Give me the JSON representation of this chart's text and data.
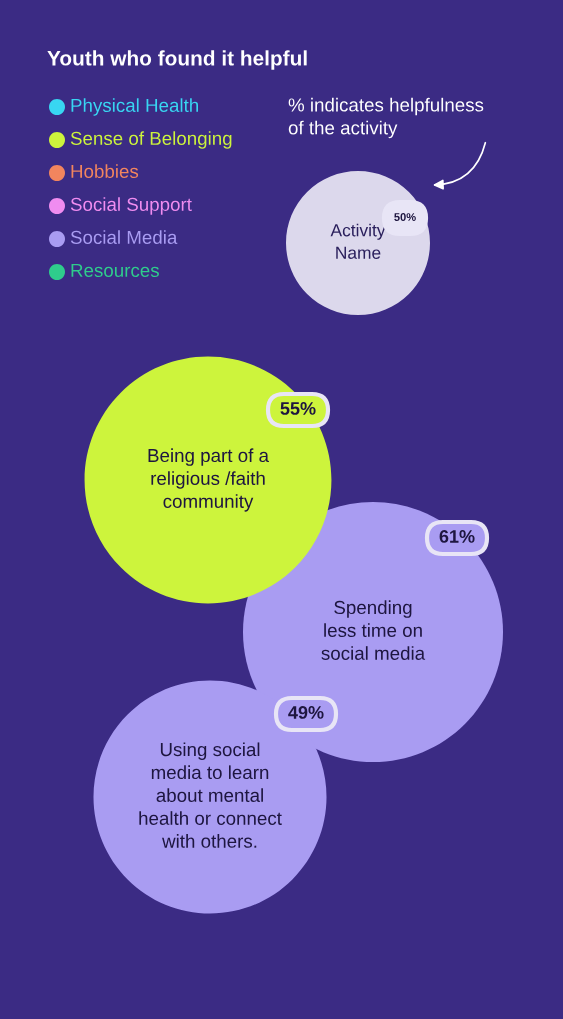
{
  "chart_data": {
    "type": "other",
    "title": "Youth who found it helpful",
    "legend": "top left",
    "categories": [
      "Being part of a\nreligious /faith\ncommunity",
      "Spending\nless time on\nsocial media",
      "Using social\nmedia to learn\nabout mental\nhealth or connect\nwith others."
    ],
    "series": [
      {
        "name": "Physical Health",
        "color": "#38d6f2",
        "values": [
          null,
          null,
          null
        ]
      },
      {
        "name": "Sense of Belonging",
        "color": "#cdf43c",
        "values": [
          55,
          null,
          null
        ],
        "value_labels": [
          "55%",
          null,
          null
        ]
      },
      {
        "name": "Hobbies",
        "color": "#f2855e",
        "values": [
          null,
          null,
          null
        ]
      },
      {
        "name": "Social Support",
        "color": "#f08cf0",
        "values": [
          null,
          null,
          null
        ]
      },
      {
        "name": "Social Media",
        "color": "#a99cf2",
        "values": [
          null,
          61,
          49
        ],
        "value_labels": [
          null,
          "61%",
          "49%"
        ]
      },
      {
        "name": "Resources",
        "color": "#2fcc8c",
        "values": [
          null,
          null,
          null
        ]
      }
    ],
    "annotations": [
      "% indicates helpfulness\nof the activity",
      "Activity\nName",
      "50%"
    ]
  }
}
